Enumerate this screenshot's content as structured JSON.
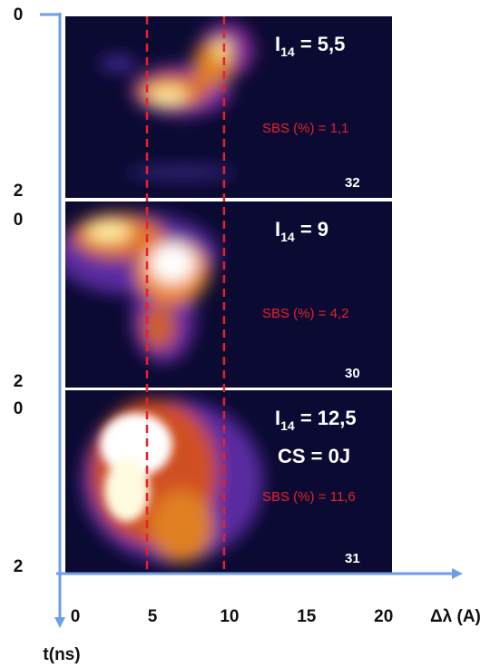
{
  "chart_data": {
    "type": "streak",
    "xlabel": "Δλ (A)",
    "ylabel": "t(ns)",
    "xlim": [
      -0.3,
      20.9
    ],
    "xticks": [
      0,
      5,
      10,
      15,
      20
    ],
    "ylim": [
      0,
      2
    ],
    "yticks": [
      0,
      2
    ],
    "markers": [
      5,
      10
    ],
    "marker_color": "#e8202a",
    "panels": [
      {
        "label": "I",
        "label_sub": "14",
        "label_rest": " = 5,5",
        "sbs": "SBS (%) = 1,1",
        "shot": "32"
      },
      {
        "label": "I",
        "label_sub": "14",
        "label_rest": " = 9",
        "sbs": "SBS (%) = 4,2",
        "shot": "30"
      },
      {
        "label": "I",
        "label_sub": "14",
        "label_rest": " = 12,5",
        "extra": "CS = 0J",
        "sbs": "SBS (%) = 11,6",
        "shot": "31"
      }
    ]
  }
}
